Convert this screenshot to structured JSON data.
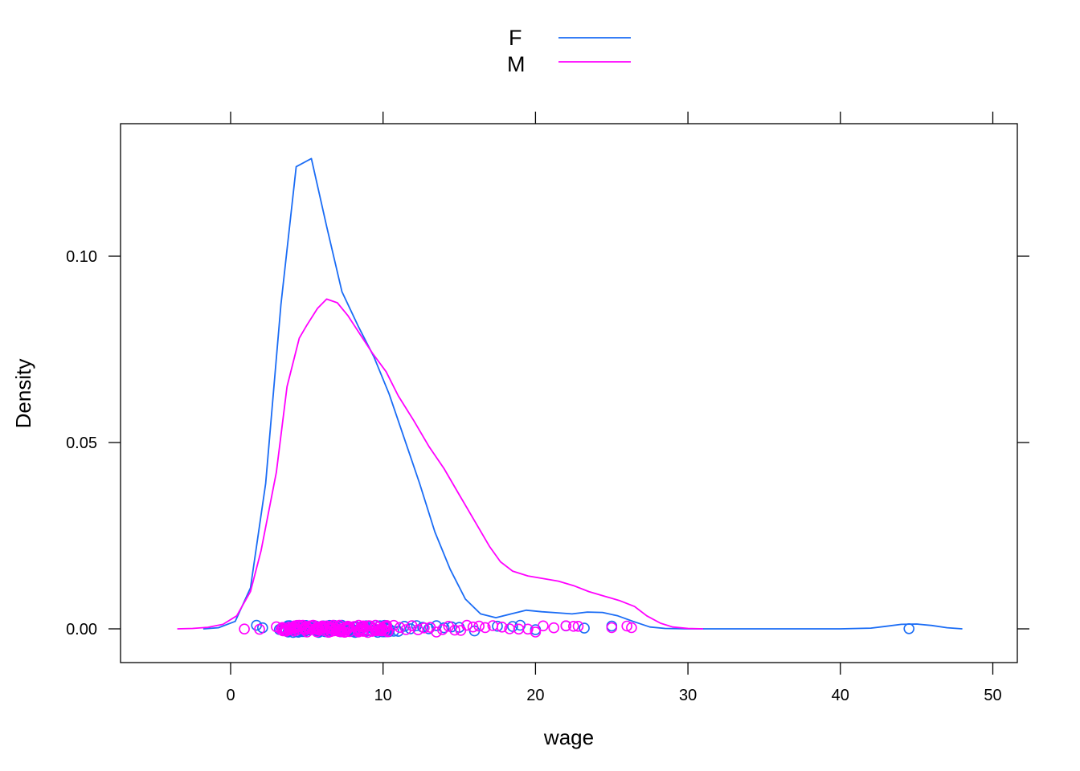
{
  "chart_data": {
    "type": "line",
    "title": "",
    "xlabel": "wage",
    "ylabel": "Density",
    "xlim": [
      -7.3,
      51.6
    ],
    "ylim": [
      -0.009,
      0.1355
    ],
    "x_ticks": [
      0,
      10,
      20,
      30,
      40,
      50
    ],
    "x_tick_labels": [
      "0",
      "10",
      "20",
      "30",
      "40",
      "50"
    ],
    "y_ticks": [
      0.0,
      0.05,
      0.1
    ],
    "y_tick_labels": [
      "0.00",
      "0.05",
      "0.10"
    ],
    "grid": false,
    "legend_position": "top",
    "legend": [
      {
        "label": "F",
        "color": "#1a6cf5"
      },
      {
        "label": "M",
        "color": "#ff00ff"
      }
    ],
    "series": [
      {
        "name": "F",
        "color": "#1a6cf5",
        "x": [
          -1.8,
          -0.8,
          0.3,
          1.3,
          2.3,
          3.3,
          4.3,
          5.3,
          6.3,
          7.3,
          8.4,
          9.4,
          10.4,
          11.4,
          12.4,
          13.4,
          14.4,
          15.4,
          16.4,
          17.4,
          18.4,
          19.4,
          20.4,
          21.4,
          22.4,
          23.4,
          24.4,
          25.4,
          26.4,
          27.5,
          28.5,
          30,
          35,
          40,
          42,
          43,
          44,
          45,
          46,
          47,
          48
        ],
        "y": [
          0.0,
          0.0003,
          0.002,
          0.011,
          0.039,
          0.087,
          0.124,
          0.1262,
          0.108,
          0.0905,
          0.081,
          0.073,
          0.063,
          0.051,
          0.039,
          0.026,
          0.016,
          0.008,
          0.004,
          0.003,
          0.004,
          0.005,
          0.0046,
          0.0043,
          0.004,
          0.0045,
          0.0044,
          0.0035,
          0.002,
          0.0005,
          0.0001,
          0.0,
          0.0,
          0.0,
          0.0002,
          0.0007,
          0.0012,
          0.0013,
          0.0009,
          0.0003,
          0.0
        ]
      },
      {
        "name": "M",
        "color": "#ff00ff",
        "x": [
          -3.5,
          -2.5,
          -1.5,
          -0.5,
          0.4,
          1.3,
          2.0,
          3.0,
          3.7,
          4.5,
          5.0,
          5.7,
          6.3,
          7.0,
          7.7,
          8.5,
          9.3,
          10.2,
          11.0,
          12.0,
          13.0,
          14.0,
          15.0,
          16.0,
          17.0,
          17.7,
          18.5,
          19.5,
          20.5,
          21.5,
          22.5,
          23.5,
          24.5,
          25.5,
          26.5,
          27.3,
          28.2,
          29.0,
          30.0,
          31.0
        ],
        "y": [
          0.0,
          0.0001,
          0.0004,
          0.0012,
          0.0035,
          0.01,
          0.021,
          0.042,
          0.065,
          0.078,
          0.0815,
          0.086,
          0.0885,
          0.0875,
          0.084,
          0.079,
          0.074,
          0.069,
          0.0625,
          0.056,
          0.049,
          0.043,
          0.036,
          0.029,
          0.022,
          0.018,
          0.0155,
          0.0142,
          0.0135,
          0.0128,
          0.0116,
          0.01,
          0.0088,
          0.0076,
          0.006,
          0.0035,
          0.0015,
          0.0005,
          0.0001,
          0.0
        ]
      }
    ],
    "rug_points": {
      "F": [
        1.7,
        2.1,
        3.2,
        3.5,
        3.8,
        4.1,
        4.4,
        4.7,
        5.0,
        5.3,
        5.6,
        5.9,
        6.2,
        6.5,
        6.8,
        7.1,
        7.4,
        7.7,
        8.0,
        8.3,
        8.6,
        8.9,
        9.2,
        9.5,
        9.8,
        10.1,
        10.4,
        10.7,
        11.0,
        11.4,
        11.8,
        12.2,
        12.6,
        13.0,
        13.5,
        14.0,
        14.5,
        15.0,
        16.0,
        17.5,
        18.5,
        19.0,
        20.0,
        22.0,
        23.2,
        25.0,
        44.5
      ],
      "M": [
        0.9,
        1.9,
        3.0,
        3.3,
        3.6,
        3.9,
        4.2,
        4.5,
        4.8,
        5.1,
        5.4,
        5.7,
        6.0,
        6.3,
        6.6,
        6.9,
        7.2,
        7.5,
        7.8,
        8.1,
        8.4,
        8.7,
        9.0,
        9.3,
        9.6,
        9.9,
        10.3,
        10.7,
        11.1,
        11.5,
        11.9,
        12.3,
        12.7,
        13.1,
        13.5,
        13.9,
        14.3,
        14.7,
        15.1,
        15.5,
        15.9,
        16.3,
        16.7,
        17.2,
        17.8,
        18.3,
        18.9,
        19.5,
        20.0,
        20.5,
        21.2,
        22.0,
        22.5,
        22.8,
        25.0,
        26.0,
        26.3
      ]
    }
  },
  "legend": {
    "items": [
      {
        "label": "F",
        "color": "#1a6cf5"
      },
      {
        "label": "M",
        "color": "#ff00ff"
      }
    ]
  },
  "axes": {
    "xlabel": "wage",
    "ylabel": "Density",
    "x_tick_labels": [
      "0",
      "10",
      "20",
      "30",
      "40",
      "50"
    ],
    "y_tick_labels": [
      "0.00",
      "0.05",
      "0.10"
    ]
  }
}
